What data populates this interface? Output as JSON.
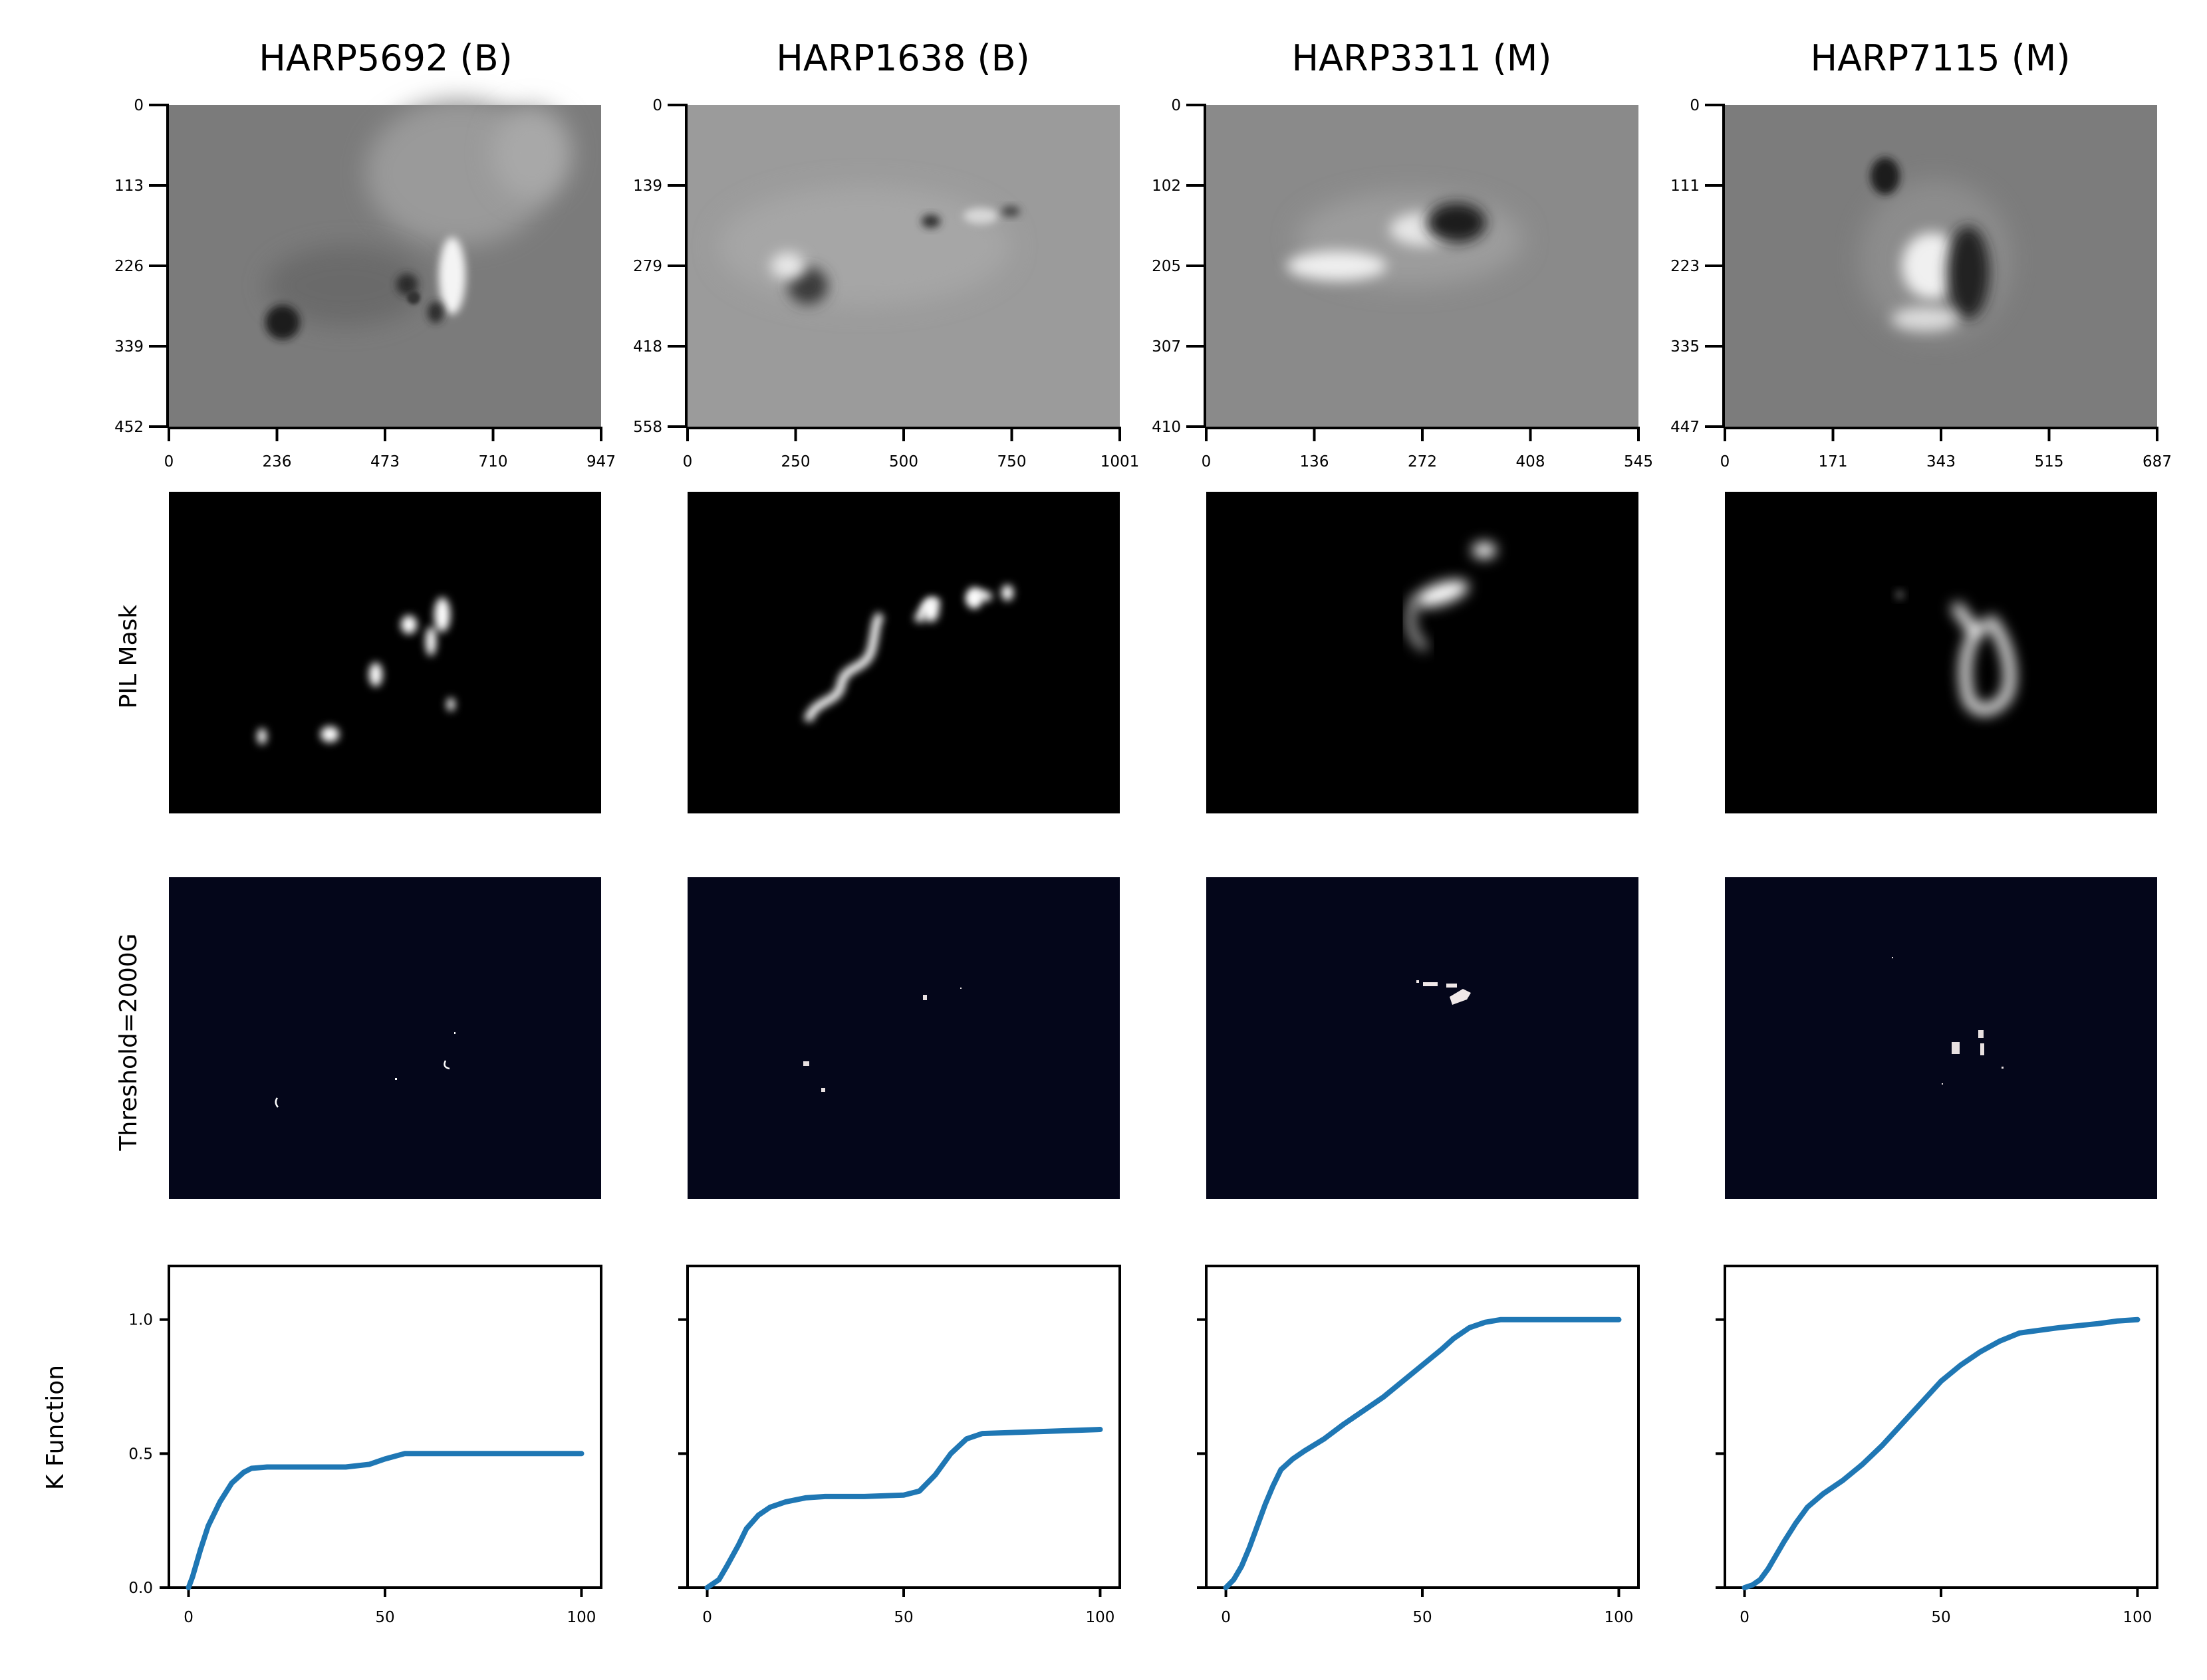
{
  "panels": [
    {
      "title": "HARP5692 (B)",
      "magnetogram": {
        "yticks": [
          "0",
          "113",
          "226",
          "339",
          "452"
        ],
        "xticks": [
          "0",
          "236",
          "473",
          "710",
          "947"
        ]
      },
      "kfunction": {
        "x": [
          0,
          1,
          3,
          5,
          8,
          11,
          14,
          16,
          20,
          30,
          40,
          46,
          50,
          55,
          60,
          70,
          80,
          90,
          100
        ],
        "y": [
          0,
          0.04,
          0.14,
          0.23,
          0.32,
          0.39,
          0.43,
          0.445,
          0.45,
          0.45,
          0.45,
          0.46,
          0.48,
          0.5,
          0.5,
          0.5,
          0.5,
          0.5,
          0.5
        ]
      }
    },
    {
      "title": "HARP1638 (B)",
      "magnetogram": {
        "yticks": [
          "0",
          "139",
          "279",
          "418",
          "558"
        ],
        "xticks": [
          "0",
          "250",
          "500",
          "750",
          "1001"
        ]
      },
      "kfunction": {
        "x": [
          0,
          3,
          5,
          8,
          10,
          13,
          16,
          20,
          25,
          30,
          40,
          50,
          54,
          58,
          62,
          66,
          70,
          80,
          90,
          100
        ],
        "y": [
          0,
          0.03,
          0.08,
          0.16,
          0.22,
          0.27,
          0.3,
          0.32,
          0.335,
          0.34,
          0.34,
          0.345,
          0.36,
          0.42,
          0.5,
          0.555,
          0.575,
          0.58,
          0.585,
          0.59
        ]
      }
    },
    {
      "title": "HARP3311 (M)",
      "magnetogram": {
        "yticks": [
          "0",
          "102",
          "205",
          "307",
          "410"
        ],
        "xticks": [
          "0",
          "136",
          "272",
          "408",
          "545"
        ]
      },
      "kfunction": {
        "x": [
          0,
          2,
          4,
          6,
          8,
          10,
          12,
          14,
          17,
          20,
          25,
          30,
          35,
          40,
          45,
          50,
          55,
          58,
          62,
          66,
          70,
          80,
          90,
          100
        ],
        "y": [
          0,
          0.03,
          0.08,
          0.15,
          0.23,
          0.31,
          0.38,
          0.44,
          0.48,
          0.51,
          0.555,
          0.61,
          0.66,
          0.71,
          0.77,
          0.83,
          0.89,
          0.93,
          0.97,
          0.99,
          1.0,
          1.0,
          1.0,
          1.0
        ]
      }
    },
    {
      "title": "HARP7115 (M)",
      "magnetogram": {
        "yticks": [
          "0",
          "111",
          "223",
          "335",
          "447"
        ],
        "xticks": [
          "0",
          "171",
          "343",
          "515",
          "687"
        ]
      },
      "kfunction": {
        "x": [
          0,
          2,
          4,
          6,
          8,
          10,
          13,
          16,
          20,
          25,
          30,
          35,
          40,
          45,
          50,
          55,
          60,
          65,
          70,
          80,
          90,
          95,
          100
        ],
        "y": [
          0,
          0.01,
          0.03,
          0.07,
          0.12,
          0.17,
          0.24,
          0.3,
          0.35,
          0.4,
          0.46,
          0.53,
          0.61,
          0.69,
          0.77,
          0.83,
          0.88,
          0.92,
          0.95,
          0.97,
          0.985,
          0.995,
          1.0
        ]
      }
    }
  ],
  "row_labels": {
    "pil": "PIL Mask",
    "threshold": "Threshold=2000G",
    "k": "K Function"
  },
  "k_axis": {
    "xticks": [
      0,
      50,
      100
    ],
    "yticks": [
      0.0,
      0.5,
      1.0
    ],
    "xlim": [
      -5,
      105
    ],
    "ylim": [
      0,
      1.2
    ]
  },
  "chart_data": {
    "type": "line",
    "ylabel": "K Function",
    "series": [
      {
        "name": "HARP5692 (B)",
        "x": [
          0,
          1,
          3,
          5,
          8,
          11,
          14,
          16,
          20,
          30,
          40,
          46,
          50,
          55,
          60,
          70,
          80,
          90,
          100
        ],
        "y": [
          0,
          0.04,
          0.14,
          0.23,
          0.32,
          0.39,
          0.43,
          0.445,
          0.45,
          0.45,
          0.45,
          0.46,
          0.48,
          0.5,
          0.5,
          0.5,
          0.5,
          0.5,
          0.5
        ]
      },
      {
        "name": "HARP1638 (B)",
        "x": [
          0,
          3,
          5,
          8,
          10,
          13,
          16,
          20,
          25,
          30,
          40,
          50,
          54,
          58,
          62,
          66,
          70,
          80,
          90,
          100
        ],
        "y": [
          0,
          0.03,
          0.08,
          0.16,
          0.22,
          0.27,
          0.3,
          0.32,
          0.335,
          0.34,
          0.34,
          0.345,
          0.36,
          0.42,
          0.5,
          0.555,
          0.575,
          0.58,
          0.585,
          0.59
        ]
      },
      {
        "name": "HARP3311 (M)",
        "x": [
          0,
          2,
          4,
          6,
          8,
          10,
          12,
          14,
          17,
          20,
          25,
          30,
          35,
          40,
          45,
          50,
          55,
          58,
          62,
          66,
          70,
          80,
          90,
          100
        ],
        "y": [
          0,
          0.03,
          0.08,
          0.15,
          0.23,
          0.31,
          0.38,
          0.44,
          0.48,
          0.51,
          0.555,
          0.61,
          0.66,
          0.71,
          0.77,
          0.83,
          0.89,
          0.93,
          0.97,
          0.99,
          1.0,
          1.0,
          1.0,
          1.0
        ]
      },
      {
        "name": "HARP7115 (M)",
        "x": [
          0,
          2,
          4,
          6,
          8,
          10,
          13,
          16,
          20,
          25,
          30,
          35,
          40,
          45,
          50,
          55,
          60,
          65,
          70,
          80,
          90,
          95,
          100
        ],
        "y": [
          0,
          0.01,
          0.03,
          0.07,
          0.12,
          0.17,
          0.24,
          0.3,
          0.35,
          0.4,
          0.46,
          0.53,
          0.61,
          0.69,
          0.77,
          0.83,
          0.88,
          0.92,
          0.95,
          0.97,
          0.985,
          0.995,
          1.0
        ]
      }
    ],
    "xlim": [
      -5,
      105
    ],
    "ylim": [
      0,
      1.2
    ],
    "line_color": "#1f77b4"
  },
  "colors": {
    "line": "#1f77b4",
    "threshold_bg": "#04061a",
    "pil_bg": "#000000",
    "magnetogram_bg": "#7d7d7d"
  }
}
